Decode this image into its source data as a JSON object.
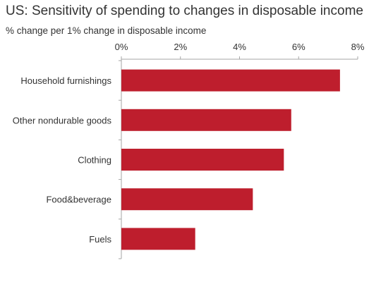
{
  "chart_data": {
    "type": "bar",
    "orientation": "horizontal",
    "title": "US: Sensitivity of spending to changes in disposable income",
    "subtitle": "% change per 1% change in disposable income",
    "categories": [
      "Household furnishings",
      "Other nondurable goods",
      "Clothing",
      "Food&beverage",
      "Fuels"
    ],
    "values": [
      7.4,
      5.75,
      5.5,
      4.45,
      2.5
    ],
    "xlim": [
      0,
      8
    ],
    "x_ticks": [
      0,
      2,
      4,
      6,
      8
    ],
    "x_tick_labels": [
      "0%",
      "2%",
      "4%",
      "6%",
      "8%"
    ],
    "xaxis_position": "top",
    "grid": false,
    "legend": "none",
    "bar_color": "#BE1E2D"
  }
}
